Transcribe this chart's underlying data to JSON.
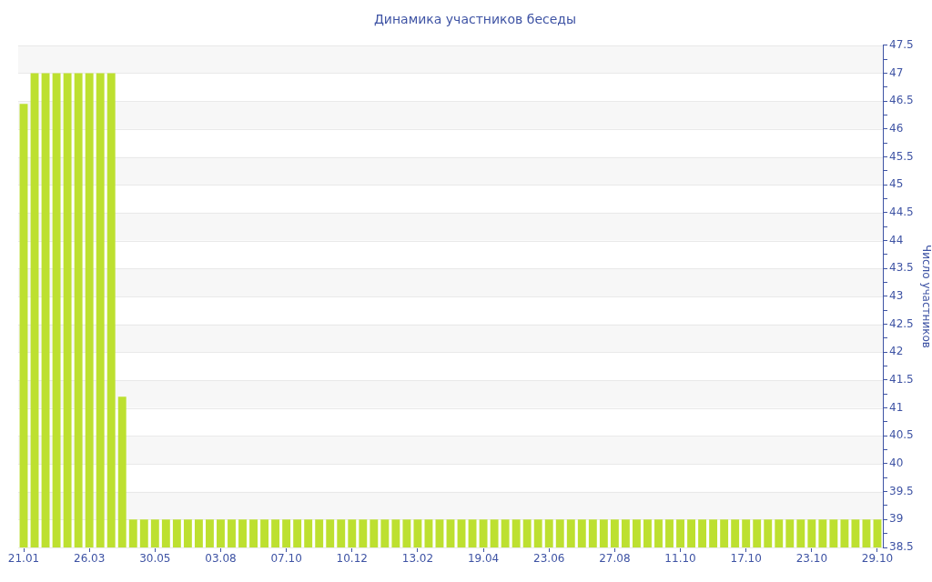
{
  "chart_data": {
    "type": "bar",
    "title": "Динамика участников беседы",
    "ylabel": "Число участников",
    "categories": [
      "21.01",
      null,
      null,
      null,
      null,
      null,
      "26.03",
      null,
      null,
      null,
      null,
      null,
      "30.05",
      null,
      null,
      null,
      null,
      null,
      "03.08",
      null,
      null,
      null,
      null,
      null,
      "07.10",
      null,
      null,
      null,
      null,
      null,
      "10.12",
      null,
      null,
      null,
      null,
      null,
      "13.02",
      null,
      null,
      null,
      null,
      null,
      "19.04",
      null,
      null,
      null,
      null,
      null,
      "23.06",
      null,
      null,
      null,
      null,
      null,
      "27.08",
      null,
      null,
      null,
      null,
      null,
      "11.10",
      null,
      null,
      null,
      null,
      null,
      "17.10",
      null,
      null,
      null,
      null,
      null,
      "23.10",
      null,
      null,
      null,
      null,
      null,
      "29.10"
    ],
    "values": [
      46.45,
      47,
      47,
      47,
      47,
      47,
      47,
      47,
      47,
      41.2,
      39,
      39,
      39,
      39,
      39,
      39,
      39,
      39,
      39,
      39,
      39,
      39,
      39,
      39,
      39,
      39,
      39,
      39,
      39,
      39,
      39,
      39,
      39,
      39,
      39,
      39,
      39,
      39,
      39,
      39,
      39,
      39,
      39,
      39,
      39,
      39,
      39,
      39,
      39,
      39,
      39,
      39,
      39,
      39,
      39,
      39,
      39,
      39,
      39,
      39,
      39,
      39,
      39,
      39,
      39,
      39,
      39,
      39,
      39,
      39,
      39,
      39,
      39,
      39,
      39,
      39,
      39,
      39,
      39
    ],
    "color": "#bde030",
    "ylim": [
      38.5,
      47.5
    ],
    "yticks": [
      38.5,
      {
        "value": 38.75,
        "label": null
      },
      39,
      {
        "value": 39.25,
        "label": null
      },
      39.5,
      {
        "value": 39.75,
        "label": null
      },
      40,
      {
        "value": 40.25,
        "label": null
      },
      40.5,
      {
        "value": 40.75,
        "label": null
      },
      41,
      {
        "value": 41.25,
        "label": null
      },
      41.5,
      {
        "value": 41.75,
        "label": null
      },
      42,
      {
        "value": 42.25,
        "label": null
      },
      42.5,
      {
        "value": 42.75,
        "label": null
      },
      43,
      {
        "value": 43.25,
        "label": null
      },
      43.5,
      {
        "value": 43.75,
        "label": null
      },
      44,
      {
        "value": 44.25,
        "label": null
      },
      44.5,
      {
        "value": 44.75,
        "label": null
      },
      45,
      {
        "value": 45.25,
        "label": null
      },
      45.5,
      {
        "value": 45.75,
        "label": null
      },
      46,
      {
        "value": 46.25,
        "label": null
      },
      46.5,
      {
        "value": 46.75,
        "label": null
      },
      47,
      {
        "value": 47.25,
        "label": null
      },
      47.5
    ],
    "grid": "y"
  }
}
